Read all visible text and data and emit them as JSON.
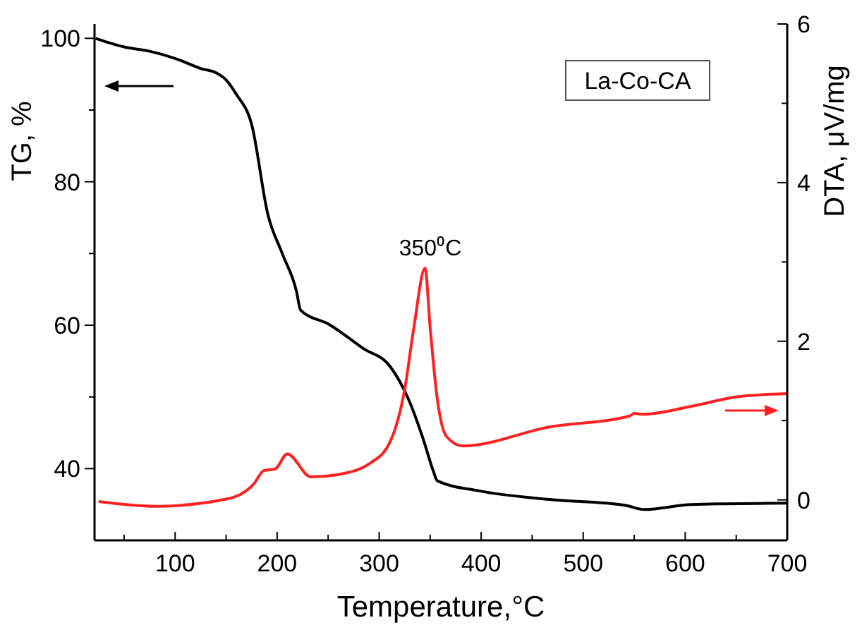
{
  "chart_data": {
    "type": "line",
    "xlabel": "Temperature,°C",
    "ylabel": "TG, %",
    "y2label": "DTA, μV/mg",
    "xlim": [
      21,
      700
    ],
    "xticks": [
      {
        "value": 50,
        "label": null
      },
      100,
      {
        "value": 150,
        "label": null
      },
      200,
      {
        "value": 250,
        "label": null
      },
      300,
      {
        "value": 350,
        "label": null
      },
      400,
      {
        "value": 450,
        "label": null
      },
      500,
      {
        "value": 550,
        "label": null
      },
      600,
      {
        "value": 650,
        "label": null
      },
      700
    ],
    "ylim": [
      30,
      102
    ],
    "yticks": [
      40,
      {
        "value": 50,
        "label": null
      },
      60,
      {
        "value": 70,
        "label": null
      },
      80,
      {
        "value": 90,
        "label": null
      },
      100
    ],
    "y2lim": [
      -0.51,
      6
    ],
    "y2ticks": [
      0,
      {
        "value": 1,
        "label": null
      },
      2,
      {
        "value": 3,
        "label": null
      },
      4,
      {
        "value": 5,
        "label": null
      },
      6
    ],
    "grid": false,
    "marker": "none",
    "line_style": "solid",
    "annotations": [
      "La-Co-CA",
      "350⁰C"
    ],
    "series": [
      {
        "color": "#000000",
        "x": [
          22,
          50,
          75,
          100,
          125,
          140,
          150,
          160,
          175,
          191,
          205,
          219,
          223,
          251,
          284,
          311,
          329,
          343,
          353,
          357,
          398,
          467,
          541,
          560,
          606,
          700
        ],
        "values": [
          100,
          98.8,
          98.2,
          97.2,
          95.8,
          95.2,
          94.2,
          92.2,
          88,
          75.4,
          70,
          64.7,
          62.1,
          60.1,
          56.8,
          54.2,
          49.6,
          44.2,
          39.7,
          38.3,
          36.9,
          35.7,
          34.9,
          34.3,
          35,
          35.2
        ]
      },
      {
        "color": "#ff2020",
        "axis": "y2",
        "x": [
          25,
          81,
          150,
          177,
          187,
          198,
          210,
          233,
          260,
          292,
          311,
          325,
          334,
          345,
          350,
          357,
          366,
          382,
          467,
          546,
          550,
          559,
          606,
          651,
          700
        ],
        "values": [
          -0.02,
          -0.08,
          0.01,
          0.2,
          0.37,
          0.39,
          0.58,
          0.29,
          0.32,
          0.47,
          0.74,
          1.39,
          2.17,
          2.92,
          2.17,
          1.27,
          0.8,
          0.68,
          0.92,
          1.06,
          1.09,
          1.08,
          1.18,
          1.3,
          1.34
        ]
      }
    ]
  }
}
